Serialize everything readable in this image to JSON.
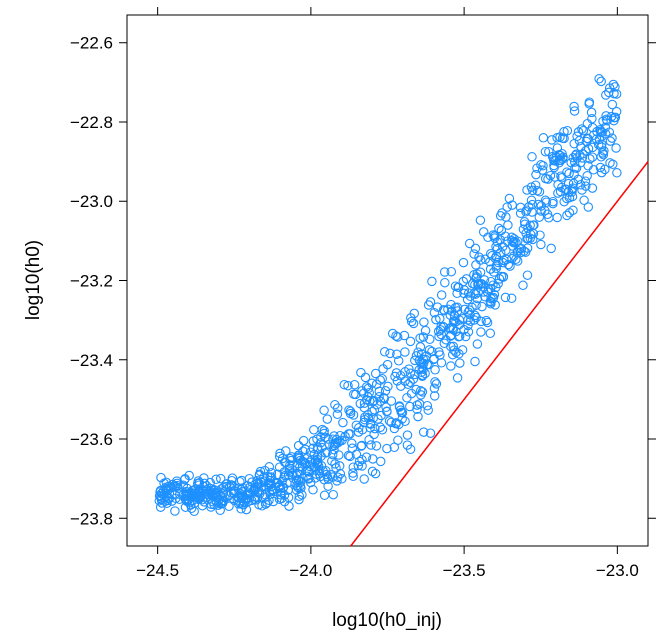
{
  "chart_data": {
    "type": "scatter",
    "title": "",
    "xlabel": "log10(h0_inj)",
    "ylabel": "log10(h0)",
    "xlim": [
      -24.6,
      -22.9
    ],
    "ylim": [
      -23.87,
      -22.53
    ],
    "x_ticks": [
      -24.5,
      -24.0,
      -23.5,
      -23.0
    ],
    "x_tick_labels": [
      "−24.5",
      "−24.0",
      "−23.5",
      "−23.0"
    ],
    "y_ticks": [
      -23.8,
      -23.6,
      -23.4,
      -23.2,
      -23.0,
      -22.8,
      -22.6
    ],
    "y_tick_labels": [
      "−23.8",
      "−23.6",
      "−23.4",
      "−23.2",
      "−23.0",
      "−22.8",
      "−22.6"
    ],
    "grid": false,
    "legend": "none",
    "marker_color": "#1E90FF",
    "marker": "open-circle",
    "reference_line": {
      "label": "y = x",
      "color": "#FF0000",
      "slope": 1,
      "intercept": 0
    },
    "scatter_band": {
      "x_range": [
        -24.5,
        -23.0
      ],
      "approx_point_count": 1000,
      "lower_bound_points": [
        [
          -24.5,
          -23.79
        ],
        [
          -24.2,
          -23.79
        ],
        [
          -24.0,
          -23.76
        ],
        [
          -23.8,
          -23.72
        ],
        [
          -23.6,
          -23.58
        ],
        [
          -23.4,
          -23.35
        ],
        [
          -23.2,
          -23.12
        ],
        [
          -23.0,
          -22.95
        ]
      ],
      "upper_bound_points": [
        [
          -24.5,
          -23.69
        ],
        [
          -24.2,
          -23.69
        ],
        [
          -24.0,
          -23.57
        ],
        [
          -23.8,
          -23.36
        ],
        [
          -23.6,
          -23.18
        ],
        [
          -23.4,
          -23.0
        ],
        [
          -23.2,
          -22.76
        ],
        [
          -23.0,
          -22.62
        ]
      ]
    }
  }
}
